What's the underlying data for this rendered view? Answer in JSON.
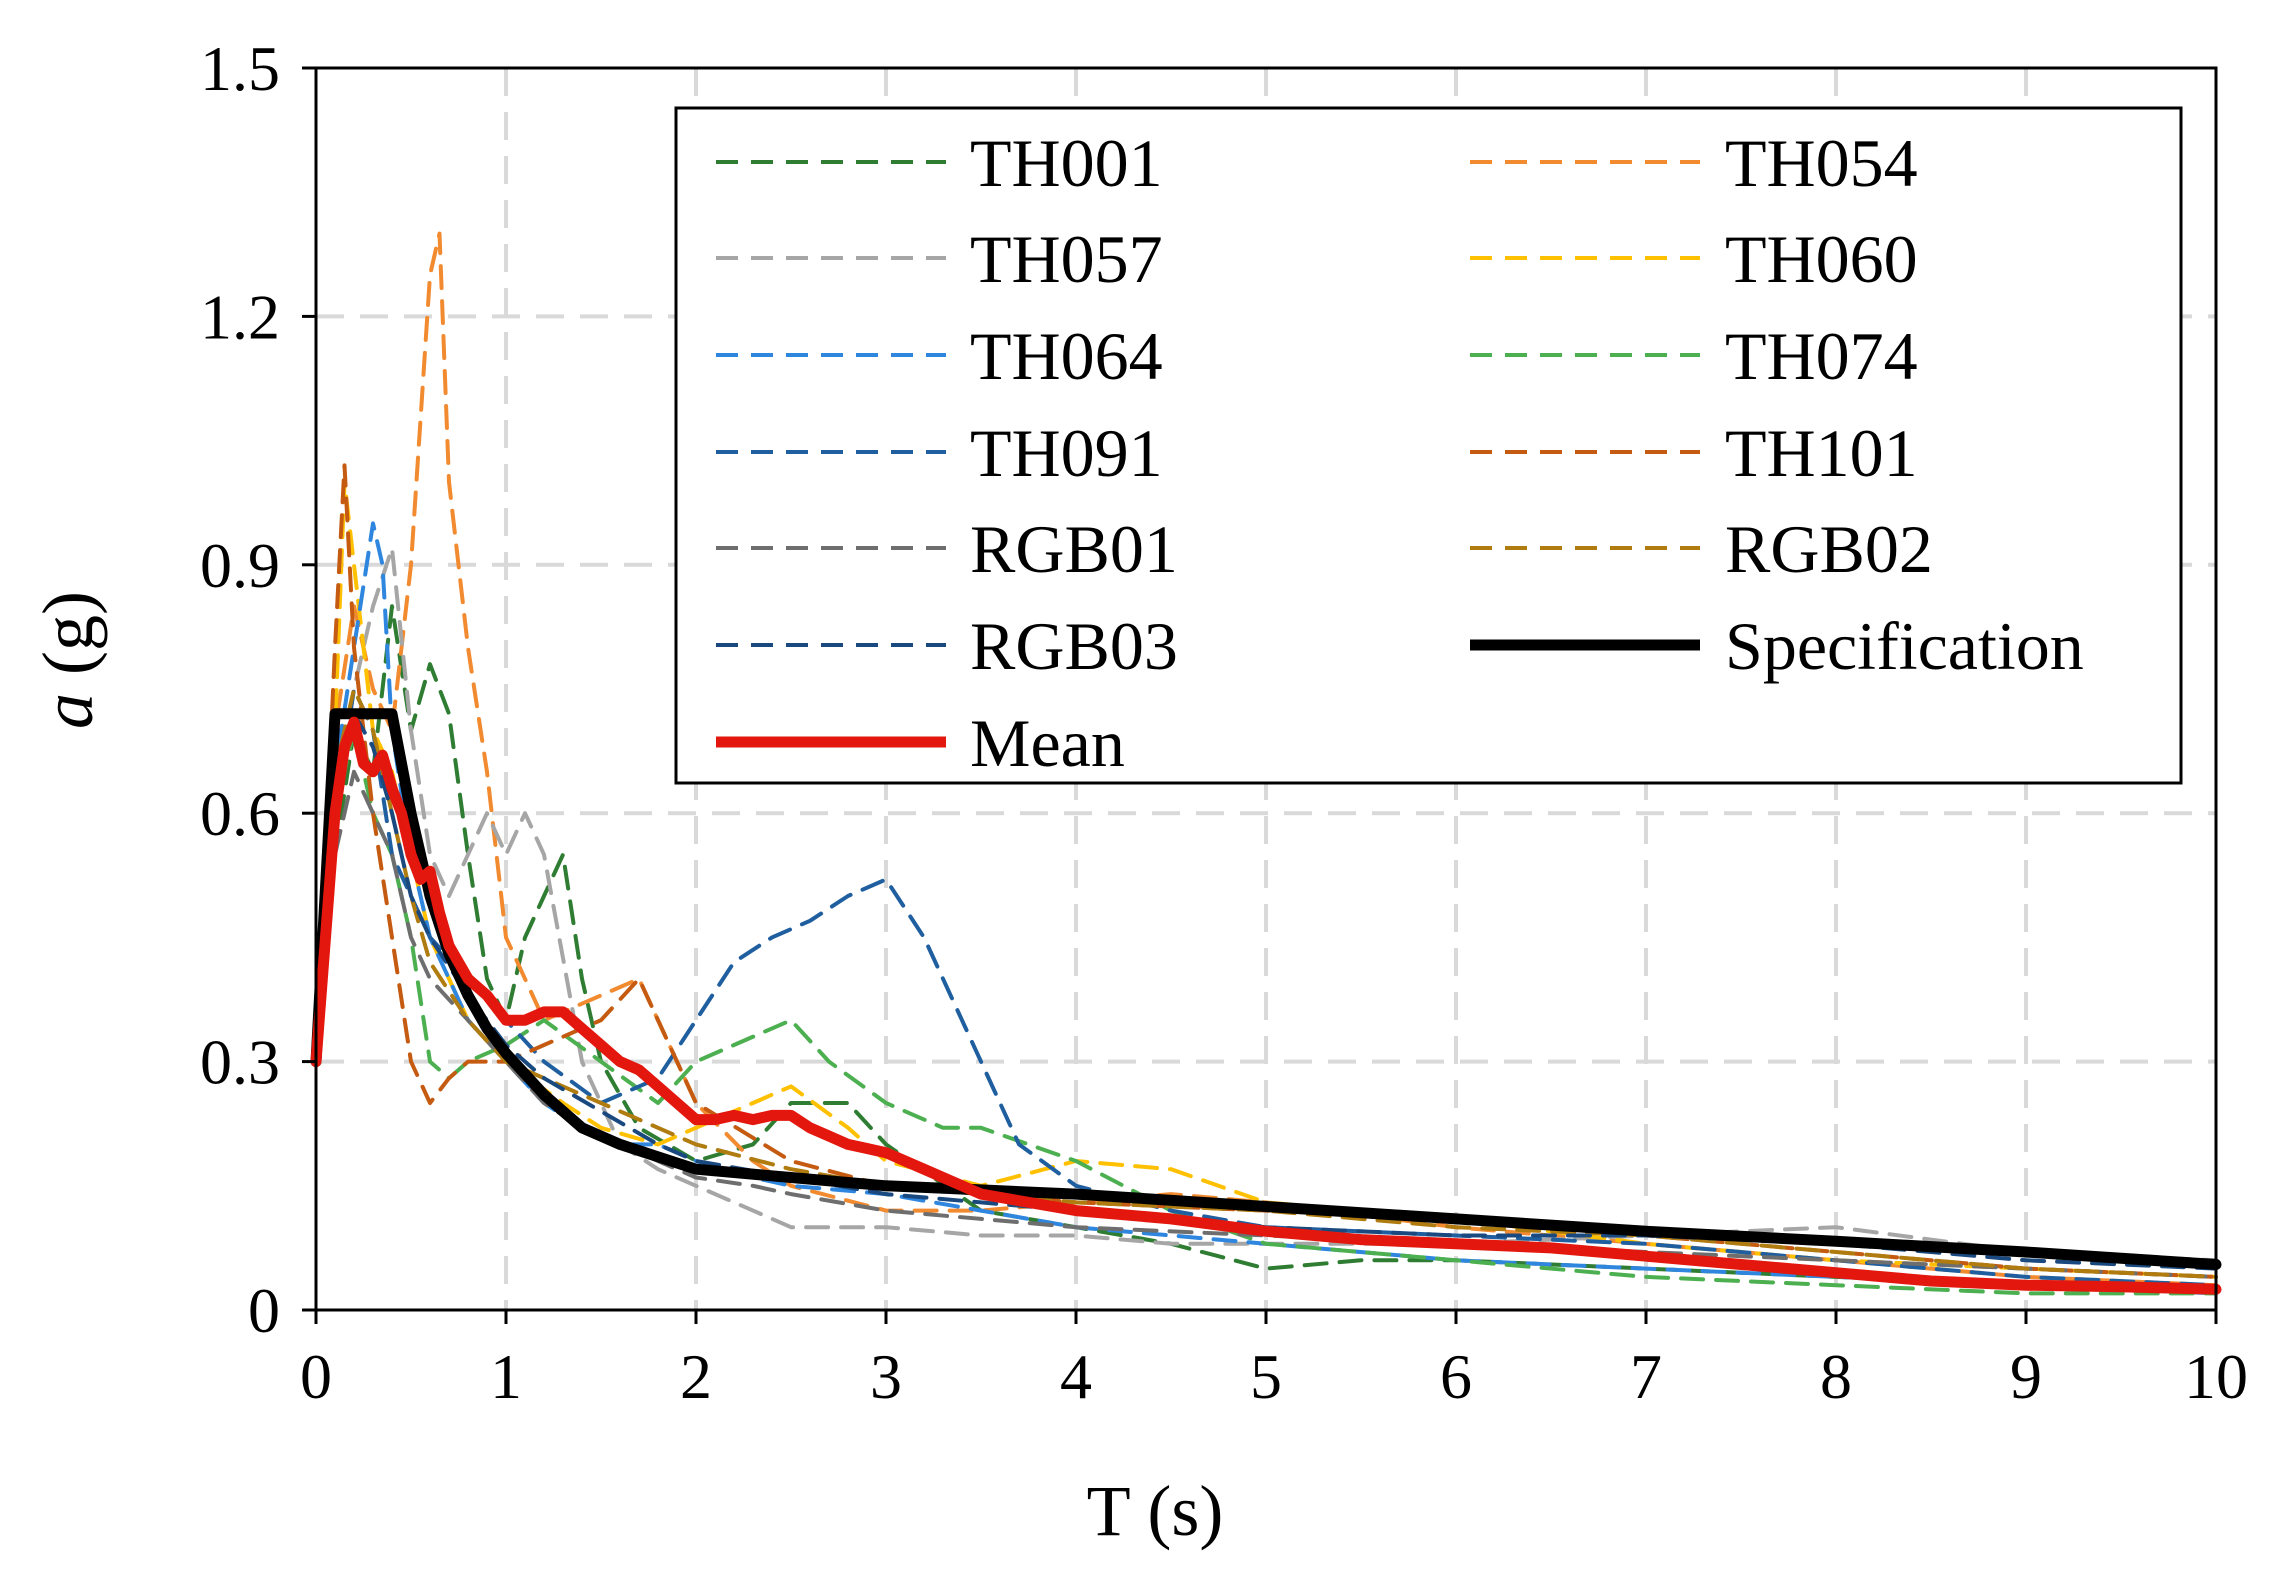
{
  "chart_data": {
    "type": "line",
    "xlabel": "T (s)",
    "ylabel_italic": "a",
    "ylabel_rest": " (g)",
    "xlim": [
      0,
      10
    ],
    "ylim": [
      0,
      1.5
    ],
    "xticks": [
      0,
      1,
      2,
      3,
      4,
      5,
      6,
      7,
      8,
      9,
      10
    ],
    "yticks": [
      0,
      0.3,
      0.6,
      0.9,
      1.2,
      1.5
    ],
    "xtick_labels": [
      "0",
      "1",
      "2",
      "3",
      "4",
      "5",
      "6",
      "7",
      "8",
      "9",
      "10"
    ],
    "ytick_labels": [
      "0",
      "0.3",
      "0.6",
      "0.9",
      "1.2",
      "1.5"
    ],
    "grid": true,
    "legend_position": "top-right",
    "series": [
      {
        "name": "TH001",
        "color": "#2e7d32",
        "dashed": true,
        "x": [
          0,
          0.1,
          0.2,
          0.3,
          0.4,
          0.5,
          0.6,
          0.7,
          0.8,
          0.9,
          1.0,
          1.1,
          1.2,
          1.3,
          1.4,
          1.5,
          1.7,
          2.0,
          2.3,
          2.5,
          2.8,
          3.0,
          3.5,
          4.0,
          4.5,
          5.0,
          5.5,
          6.0,
          7.0,
          8.0,
          9.0,
          10.0
        ],
        "y": [
          0.3,
          0.55,
          0.7,
          0.65,
          0.85,
          0.7,
          0.78,
          0.72,
          0.55,
          0.4,
          0.35,
          0.45,
          0.5,
          0.55,
          0.4,
          0.3,
          0.22,
          0.18,
          0.2,
          0.25,
          0.25,
          0.2,
          0.12,
          0.1,
          0.08,
          0.05,
          0.06,
          0.06,
          0.05,
          0.04,
          0.03,
          0.025
        ]
      },
      {
        "name": "TH054",
        "color": "#f28a30",
        "dashed": true,
        "x": [
          0,
          0.1,
          0.2,
          0.3,
          0.4,
          0.5,
          0.6,
          0.65,
          0.7,
          0.8,
          0.9,
          1.0,
          1.2,
          1.5,
          1.7,
          2.0,
          2.3,
          2.5,
          3.0,
          3.5,
          4.0,
          4.5,
          5.0,
          6.0,
          7.0,
          8.0,
          9.0,
          10.0
        ],
        "y": [
          0.3,
          0.7,
          0.85,
          0.75,
          0.7,
          0.9,
          1.25,
          1.3,
          1.0,
          0.8,
          0.65,
          0.45,
          0.35,
          0.38,
          0.4,
          0.25,
          0.18,
          0.15,
          0.12,
          0.12,
          0.13,
          0.14,
          0.13,
          0.1,
          0.08,
          0.06,
          0.04,
          0.03
        ]
      },
      {
        "name": "TH057",
        "color": "#a6a6a6",
        "dashed": true,
        "x": [
          0,
          0.1,
          0.2,
          0.3,
          0.4,
          0.5,
          0.6,
          0.7,
          0.8,
          0.9,
          1.0,
          1.1,
          1.2,
          1.4,
          1.6,
          1.8,
          2.0,
          2.3,
          2.5,
          3.0,
          3.5,
          4.0,
          4.5,
          5.0,
          6.0,
          7.0,
          8.0,
          9.0,
          10.0
        ],
        "y": [
          0.3,
          0.6,
          0.75,
          0.85,
          0.92,
          0.7,
          0.55,
          0.5,
          0.55,
          0.6,
          0.55,
          0.6,
          0.55,
          0.3,
          0.2,
          0.17,
          0.15,
          0.12,
          0.1,
          0.1,
          0.09,
          0.09,
          0.08,
          0.08,
          0.08,
          0.09,
          0.1,
          0.07,
          0.06
        ]
      },
      {
        "name": "TH060",
        "color": "#ffc000",
        "dashed": true,
        "x": [
          0,
          0.1,
          0.15,
          0.2,
          0.3,
          0.4,
          0.5,
          0.6,
          0.8,
          1.0,
          1.3,
          1.5,
          1.8,
          2.0,
          2.3,
          2.5,
          2.8,
          3.0,
          3.5,
          4.0,
          4.5,
          5.0,
          6.0,
          7.0,
          8.0,
          9.0,
          10.0
        ],
        "y": [
          0.3,
          0.7,
          1.0,
          0.9,
          0.7,
          0.65,
          0.55,
          0.45,
          0.35,
          0.3,
          0.25,
          0.22,
          0.2,
          0.22,
          0.25,
          0.27,
          0.22,
          0.18,
          0.15,
          0.18,
          0.17,
          0.13,
          0.11,
          0.08,
          0.06,
          0.05,
          0.04
        ]
      },
      {
        "name": "TH064",
        "color": "#2e86de",
        "dashed": true,
        "x": [
          0,
          0.1,
          0.2,
          0.3,
          0.35,
          0.4,
          0.5,
          0.6,
          0.7,
          0.8,
          1.0,
          1.2,
          1.4,
          1.6,
          1.8,
          2.0,
          2.3,
          2.5,
          3.0,
          3.5,
          4.0,
          4.5,
          5.0,
          6.0,
          7.0,
          8.0,
          9.0,
          10.0
        ],
        "y": [
          0.3,
          0.65,
          0.8,
          0.95,
          0.9,
          0.7,
          0.55,
          0.45,
          0.4,
          0.35,
          0.3,
          0.25,
          0.22,
          0.2,
          0.2,
          0.18,
          0.16,
          0.15,
          0.14,
          0.12,
          0.1,
          0.09,
          0.08,
          0.06,
          0.05,
          0.04,
          0.03,
          0.02
        ]
      },
      {
        "name": "TH074",
        "color": "#4caf50",
        "dashed": true,
        "x": [
          0,
          0.1,
          0.2,
          0.3,
          0.4,
          0.5,
          0.6,
          0.7,
          0.8,
          1.0,
          1.2,
          1.5,
          1.8,
          2.0,
          2.2,
          2.5,
          2.7,
          3.0,
          3.3,
          3.5,
          4.0,
          4.5,
          5.0,
          6.0,
          7.0,
          8.0,
          9.0,
          10.0
        ],
        "y": [
          0.3,
          0.6,
          0.7,
          0.6,
          0.55,
          0.45,
          0.3,
          0.28,
          0.3,
          0.32,
          0.35,
          0.3,
          0.25,
          0.3,
          0.32,
          0.35,
          0.3,
          0.25,
          0.22,
          0.22,
          0.18,
          0.12,
          0.08,
          0.06,
          0.04,
          0.03,
          0.02,
          0.02
        ]
      },
      {
        "name": "TH091",
        "color": "#1f5fa0",
        "dashed": true,
        "x": [
          0,
          0.1,
          0.2,
          0.3,
          0.4,
          0.5,
          0.6,
          0.8,
          1.0,
          1.2,
          1.5,
          1.8,
          2.0,
          2.2,
          2.4,
          2.6,
          2.8,
          3.0,
          3.2,
          3.5,
          3.7,
          4.0,
          4.5,
          5.0,
          6.0,
          7.0,
          8.0,
          9.0,
          10.0
        ],
        "y": [
          0.3,
          0.6,
          0.75,
          0.7,
          0.55,
          0.5,
          0.45,
          0.4,
          0.35,
          0.3,
          0.25,
          0.28,
          0.35,
          0.42,
          0.45,
          0.47,
          0.5,
          0.52,
          0.45,
          0.3,
          0.2,
          0.15,
          0.12,
          0.1,
          0.09,
          0.08,
          0.06,
          0.04,
          0.03
        ]
      },
      {
        "name": "TH101",
        "color": "#c55a11",
        "dashed": true,
        "x": [
          0,
          0.1,
          0.15,
          0.2,
          0.3,
          0.4,
          0.5,
          0.6,
          0.7,
          0.8,
          1.0,
          1.2,
          1.5,
          1.7,
          2.0,
          2.5,
          3.0,
          3.5,
          4.0,
          5.0,
          6.0,
          7.0,
          8.0,
          9.0,
          10.0
        ],
        "y": [
          0.3,
          0.8,
          1.02,
          0.8,
          0.6,
          0.45,
          0.3,
          0.25,
          0.28,
          0.3,
          0.3,
          0.32,
          0.35,
          0.4,
          0.25,
          0.18,
          0.15,
          0.14,
          0.13,
          0.12,
          0.11,
          0.09,
          0.07,
          0.05,
          0.04
        ]
      },
      {
        "name": "RGB01",
        "color": "#6e6e6e",
        "dashed": true,
        "x": [
          0,
          0.1,
          0.2,
          0.3,
          0.4,
          0.5,
          0.6,
          0.8,
          1.0,
          1.2,
          1.4,
          1.6,
          1.8,
          2.0,
          2.3,
          2.5,
          3.0,
          3.5,
          4.0,
          5.0,
          6.0,
          7.0,
          8.0,
          9.0,
          10.0
        ],
        "y": [
          0.3,
          0.55,
          0.65,
          0.6,
          0.55,
          0.45,
          0.4,
          0.35,
          0.3,
          0.25,
          0.22,
          0.2,
          0.18,
          0.16,
          0.15,
          0.14,
          0.12,
          0.11,
          0.1,
          0.09,
          0.08,
          0.07,
          0.06,
          0.05,
          0.04
        ]
      },
      {
        "name": "RGB02",
        "color": "#b07b0f",
        "dashed": true,
        "x": [
          0,
          0.1,
          0.2,
          0.3,
          0.4,
          0.5,
          0.6,
          0.8,
          1.0,
          1.2,
          1.5,
          1.8,
          2.0,
          2.5,
          3.0,
          3.5,
          4.0,
          5.0,
          6.0,
          7.0,
          8.0,
          9.0,
          10.0
        ],
        "y": [
          0.3,
          0.65,
          0.75,
          0.7,
          0.6,
          0.5,
          0.42,
          0.35,
          0.3,
          0.28,
          0.25,
          0.22,
          0.2,
          0.17,
          0.15,
          0.14,
          0.13,
          0.12,
          0.1,
          0.09,
          0.07,
          0.05,
          0.04
        ]
      },
      {
        "name": "RGB03",
        "color": "#19497f",
        "dashed": true,
        "x": [
          0,
          0.1,
          0.2,
          0.3,
          0.4,
          0.5,
          0.6,
          0.8,
          1.0,
          1.2,
          1.5,
          1.8,
          2.0,
          2.5,
          3.0,
          3.5,
          4.0,
          5.0,
          6.0,
          7.0,
          8.0,
          9.0,
          10.0
        ],
        "y": [
          0.3,
          0.6,
          0.72,
          0.68,
          0.6,
          0.5,
          0.45,
          0.38,
          0.32,
          0.28,
          0.24,
          0.2,
          0.18,
          0.16,
          0.14,
          0.13,
          0.12,
          0.1,
          0.09,
          0.09,
          0.08,
          0.06,
          0.05
        ]
      },
      {
        "name": "Specification",
        "color": "#000000",
        "dashed": false,
        "width": 11,
        "x": [
          0,
          0.1,
          0.4,
          0.5,
          0.6,
          0.7,
          0.8,
          0.9,
          1.0,
          1.2,
          1.4,
          1.6,
          1.8,
          2.0,
          2.5,
          3.0,
          3.5,
          4.0,
          5.0,
          6.0,
          7.0,
          8.0,
          9.0,
          10.0
        ],
        "y": [
          0.3,
          0.72,
          0.72,
          0.6,
          0.5,
          0.43,
          0.38,
          0.34,
          0.31,
          0.26,
          0.22,
          0.2,
          0.185,
          0.17,
          0.16,
          0.15,
          0.145,
          0.14,
          0.125,
          0.11,
          0.095,
          0.083,
          0.07,
          0.055
        ]
      },
      {
        "name": "Mean",
        "color": "#e3170d",
        "dashed": false,
        "width": 11,
        "x": [
          0,
          0.05,
          0.1,
          0.15,
          0.2,
          0.25,
          0.3,
          0.35,
          0.4,
          0.45,
          0.5,
          0.55,
          0.6,
          0.65,
          0.7,
          0.8,
          0.9,
          1.0,
          1.1,
          1.2,
          1.3,
          1.4,
          1.5,
          1.6,
          1.7,
          1.8,
          1.9,
          2.0,
          2.1,
          2.2,
          2.3,
          2.4,
          2.5,
          2.6,
          2.7,
          2.8,
          2.9,
          3.0,
          3.2,
          3.5,
          4.0,
          4.5,
          5.0,
          5.5,
          6.0,
          6.5,
          7.0,
          7.5,
          8.0,
          8.5,
          9.0,
          9.5,
          10.0
        ],
        "y": [
          0.3,
          0.45,
          0.6,
          0.68,
          0.71,
          0.66,
          0.65,
          0.67,
          0.63,
          0.6,
          0.55,
          0.52,
          0.53,
          0.48,
          0.44,
          0.4,
          0.38,
          0.35,
          0.35,
          0.36,
          0.36,
          0.34,
          0.32,
          0.3,
          0.29,
          0.27,
          0.25,
          0.23,
          0.23,
          0.235,
          0.23,
          0.235,
          0.235,
          0.22,
          0.21,
          0.2,
          0.195,
          0.19,
          0.17,
          0.14,
          0.12,
          0.11,
          0.095,
          0.085,
          0.08,
          0.075,
          0.065,
          0.055,
          0.045,
          0.035,
          0.03,
          0.028,
          0.025
        ]
      }
    ]
  },
  "legend": {
    "items": [
      {
        "label": "TH001",
        "color": "#2e7d32",
        "dashed": true
      },
      {
        "label": "TH054",
        "color": "#f28a30",
        "dashed": true
      },
      {
        "label": "TH057",
        "color": "#a6a6a6",
        "dashed": true
      },
      {
        "label": "TH060",
        "color": "#ffc000",
        "dashed": true
      },
      {
        "label": "TH064",
        "color": "#2e86de",
        "dashed": true
      },
      {
        "label": "TH074",
        "color": "#4caf50",
        "dashed": true
      },
      {
        "label": "TH091",
        "color": "#1f5fa0",
        "dashed": true
      },
      {
        "label": "TH101",
        "color": "#c55a11",
        "dashed": true
      },
      {
        "label": "RGB01",
        "color": "#6e6e6e",
        "dashed": true
      },
      {
        "label": "RGB02",
        "color": "#b07b0f",
        "dashed": true
      },
      {
        "label": "RGB03",
        "color": "#19497f",
        "dashed": true
      },
      {
        "label": "Specification",
        "color": "#000000",
        "dashed": false
      },
      {
        "label": "Mean",
        "color": "#e3170d",
        "dashed": false
      }
    ]
  }
}
